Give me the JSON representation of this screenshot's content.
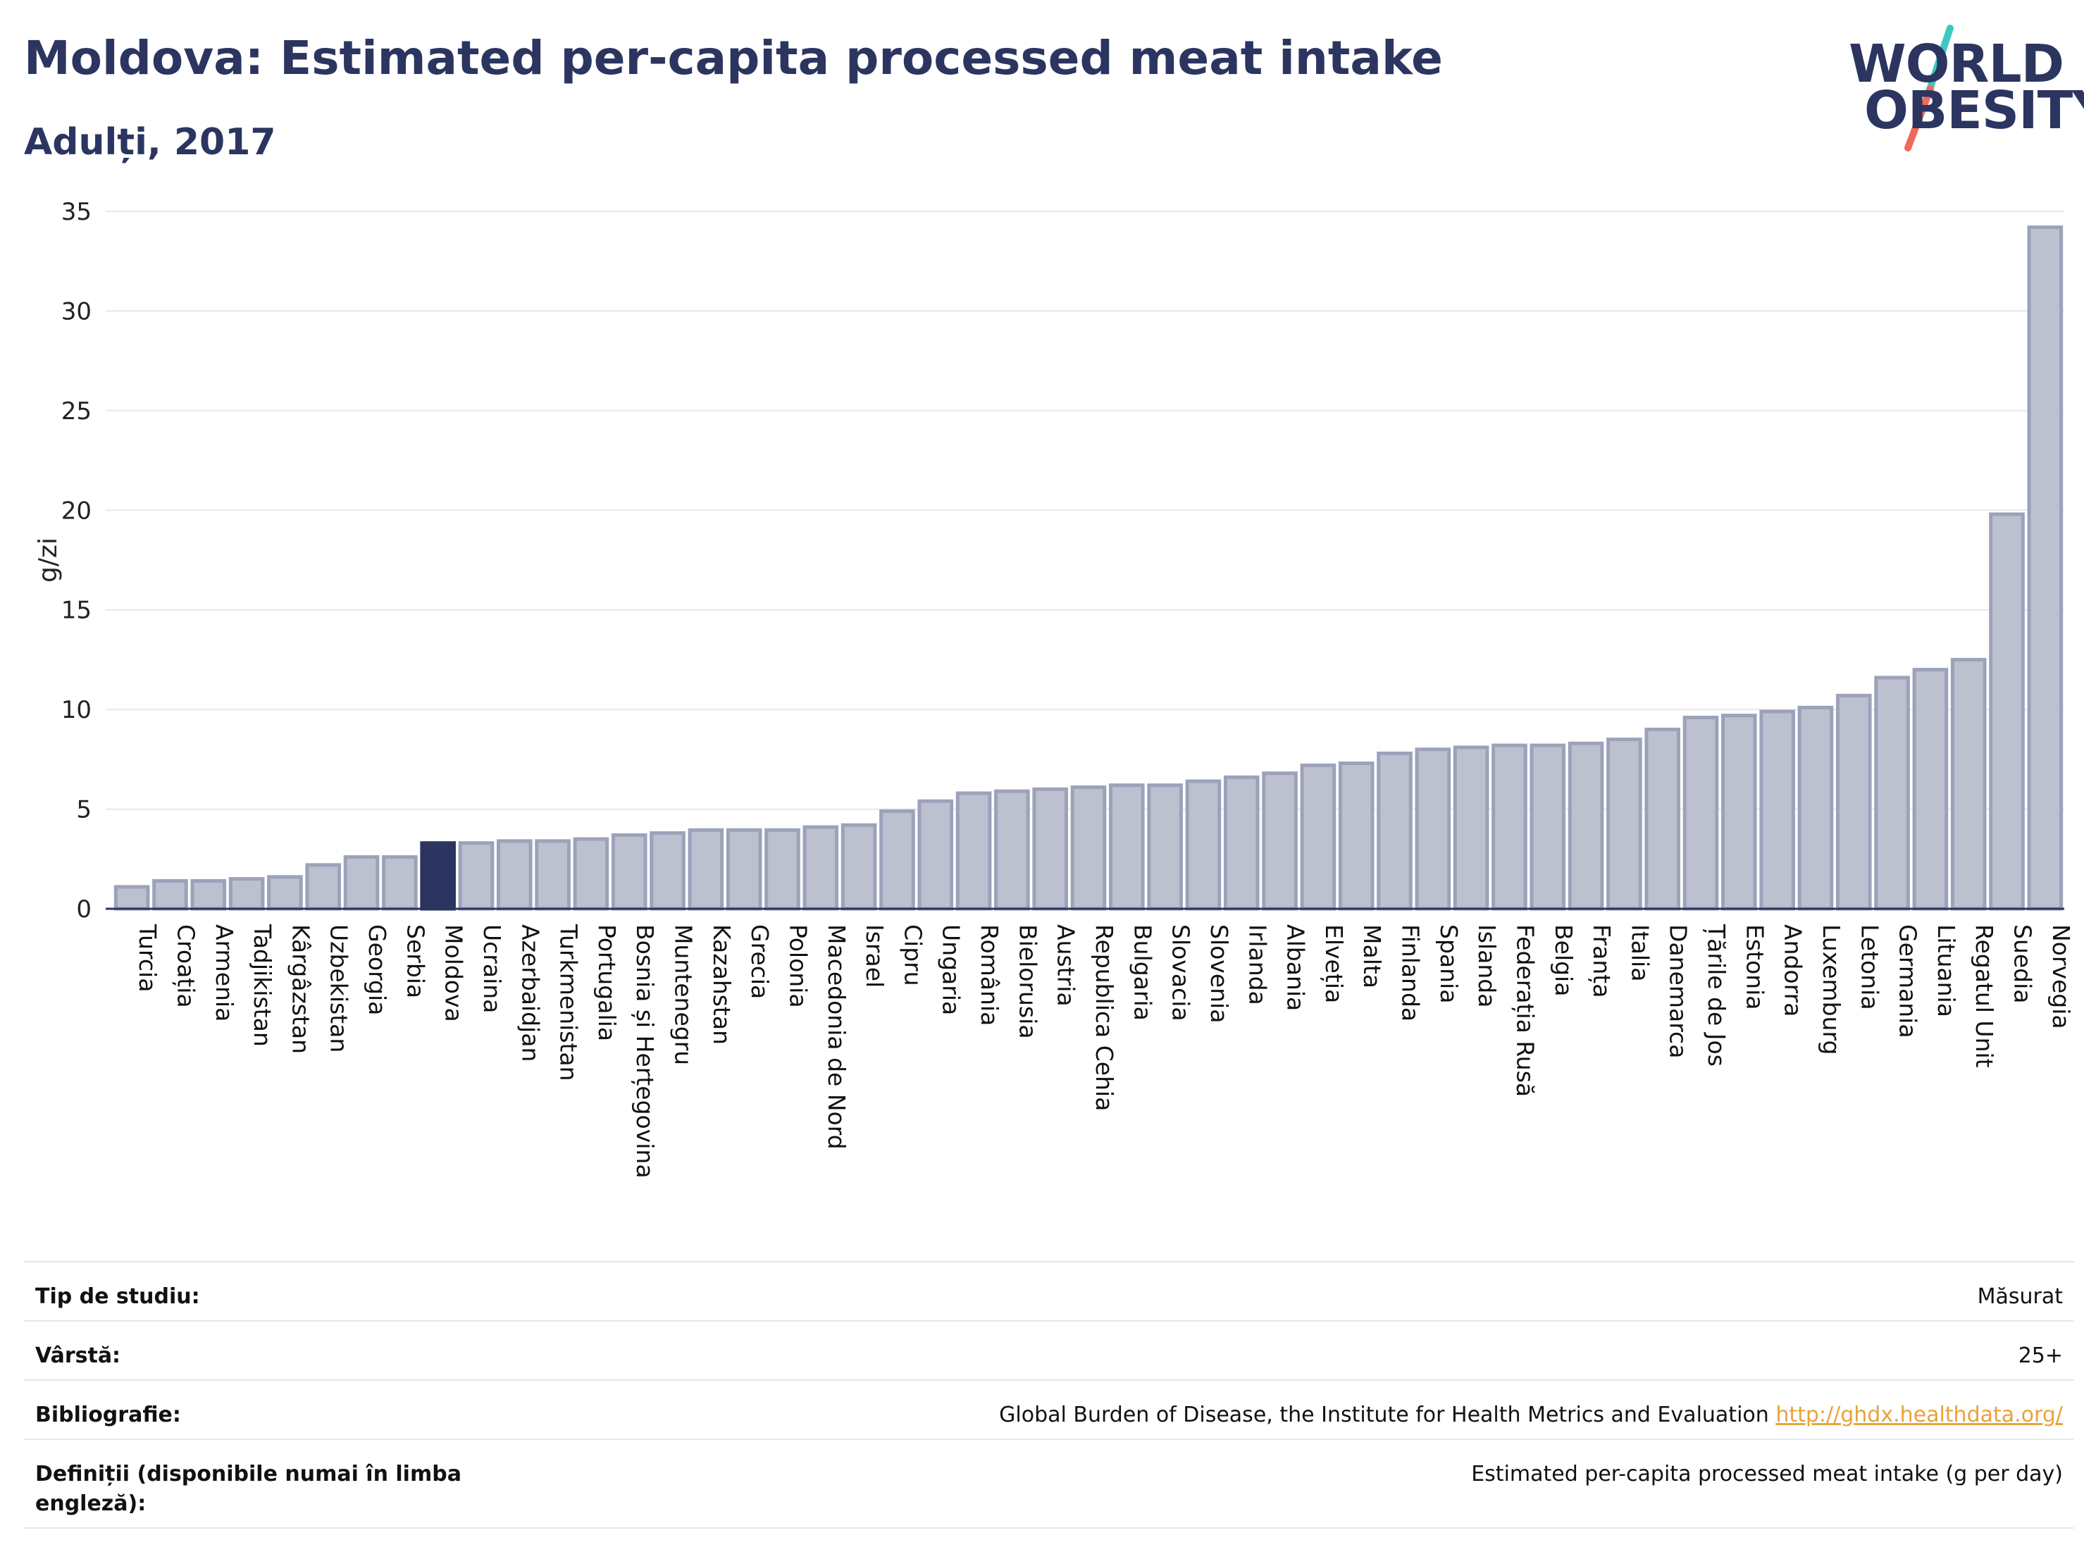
{
  "header": {
    "title": "Moldova: Estimated per-capita processed meat intake",
    "subtitle": "Adulți, 2017"
  },
  "logo": {
    "line1": "WORLD",
    "line2": "OBESITY",
    "colors": {
      "text": "#2b3560",
      "slash_top": "#3ec8c0",
      "slash_bottom": "#ef6a5a"
    }
  },
  "chart_data": {
    "type": "bar",
    "ylabel": "g/zi",
    "xlabel": "",
    "ylim": [
      0,
      35
    ],
    "yticks": [
      0,
      5,
      10,
      15,
      20,
      25,
      30,
      35
    ],
    "grid": true,
    "highlight": "Moldova",
    "colors": {
      "bar": "#bcc0cf",
      "bar_border": "#9ca2b9",
      "highlight": "#2b3560"
    },
    "categories": [
      "Turcia",
      "Croația",
      "Armenia",
      "Tadjikistan",
      "Kârgâzstan",
      "Uzbekistan",
      "Georgia",
      "Serbia",
      "Moldova",
      "Ucraina",
      "Azerbaidjan",
      "Turkmenistan",
      "Portugalia",
      "Bosnia și Herțegovina",
      "Muntenegru",
      "Kazahstan",
      "Grecia",
      "Polonia",
      "Macedonia de Nord",
      "Israel",
      "Cipru",
      "Ungaria",
      "România",
      "Bielorusia",
      "Austria",
      "Republica Cehia",
      "Bulgaria",
      "Slovacia",
      "Slovenia",
      "Irlanda",
      "Albania",
      "Elveția",
      "Malta",
      "Finlanda",
      "Spania",
      "Islanda",
      "Federația Rusă",
      "Belgia",
      "Franța",
      "Italia",
      "Danemarca",
      "Țările de Jos",
      "Estonia",
      "Andorra",
      "Luxemburg",
      "Letonia",
      "Germania",
      "Lituania",
      "Regatul Unit",
      "Suedia",
      "Norvegia"
    ],
    "values": [
      1.1,
      1.4,
      1.4,
      1.5,
      1.6,
      2.2,
      2.6,
      2.6,
      3.3,
      3.3,
      3.4,
      3.4,
      3.5,
      3.7,
      3.8,
      3.95,
      3.95,
      3.95,
      4.1,
      4.2,
      4.9,
      5.4,
      5.8,
      5.9,
      6.0,
      6.1,
      6.2,
      6.2,
      6.4,
      6.6,
      6.8,
      7.2,
      7.3,
      7.8,
      8.0,
      8.1,
      8.2,
      8.2,
      8.3,
      8.5,
      9.0,
      9.6,
      9.7,
      9.9,
      10.1,
      10.7,
      11.6,
      12.0,
      12.5,
      19.8,
      34.2
    ]
  },
  "info": {
    "study_type_label": "Tip de studiu:",
    "study_type_value": "Măsurat",
    "age_label": "Vârstă:",
    "age_value": "25+",
    "bibliography_label": "Bibliografie:",
    "bibliography_text": "Global Burden of Disease, the Institute for Health Metrics and Evaluation ",
    "bibliography_link": "http://ghdx.healthdata.org/",
    "definitions_label": "Definiții (disponibile numai în limba engleză):",
    "definitions_value": "Estimated per-capita processed meat intake (g per day)"
  }
}
